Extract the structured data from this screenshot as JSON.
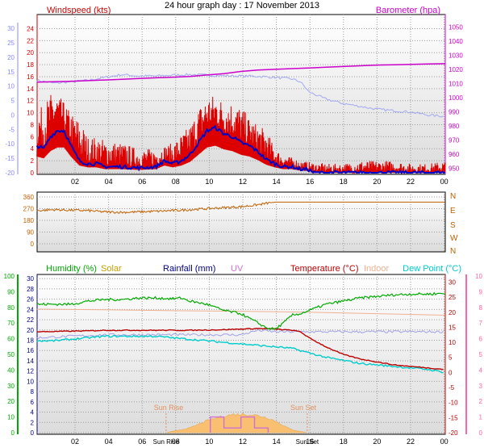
{
  "title": "24 hour graph day : 17 November 2013",
  "colors": {
    "wind": "#dd0000",
    "wind_avg": "#0000cc",
    "barometer": "#cc00cc",
    "temp_left_axis": "#8888ff",
    "indoor_temp_top": "#a0a8f0",
    "direction": "#c06000",
    "humidity": "#00aa00",
    "solar": "#c8a000",
    "rainfall": "#000088",
    "uv": "#d070d0",
    "temperature": "#bb0000",
    "indoor": "#f0b090",
    "dew_point": "#00cccc",
    "solar_fill": "#f8c070",
    "sun_marker": "#e09060",
    "panel_bg_top": "#ffffff",
    "panel_bg_bottom": "#dcdcdc"
  },
  "x_ticks": [
    "02",
    "04",
    "06",
    "08",
    "10",
    "12",
    "14",
    "16",
    "18",
    "20",
    "22",
    "00"
  ],
  "sun": {
    "rise_label": "Sun Rise",
    "set_label": "Sun Set",
    "rise_tick": "Sun Rise",
    "set_tick": "Sun Set",
    "rise_hour": 7.6,
    "set_hour": 15.9
  },
  "chart_data": [
    {
      "type": "line",
      "title": "",
      "legend": {
        "wind": "Windspeed (kts)",
        "barometer": "Barometer (hpa)"
      },
      "left_outer_ticks": [
        "-20",
        "-15",
        "-10",
        "-5",
        "0",
        "5",
        "10",
        "15",
        "20",
        "25",
        "30"
      ],
      "left_ticks": [
        "0",
        "2",
        "4",
        "6",
        "8",
        "10",
        "12",
        "14",
        "16",
        "18",
        "20",
        "22",
        "24"
      ],
      "right_ticks": [
        "950",
        "960",
        "970",
        "980",
        "990",
        "1000",
        "1010",
        "1020",
        "1030",
        "1040",
        "1050"
      ],
      "ylim_wind": [
        0,
        25
      ],
      "ylim_baro": [
        947,
        1053
      ],
      "ylim_outer": [
        -20,
        32
      ],
      "series": {
        "wind_avg_hours": [
          0,
          0.4,
          0.8,
          1.2,
          1.6,
          2,
          2.5,
          3,
          3.5,
          4,
          5,
          6,
          7,
          7.5,
          8,
          8.5,
          9,
          9.5,
          10,
          10.5,
          11,
          11.5,
          12,
          12.5,
          13,
          13.5,
          14,
          14.5,
          15,
          15.5,
          16,
          16.3,
          24
        ],
        "wind_avg_values": [
          4.5,
          4,
          6,
          7,
          7,
          4.5,
          2,
          1.5,
          1.5,
          1,
          1,
          0.8,
          1,
          2,
          1.5,
          2,
          3,
          5,
          7,
          7.5,
          6.5,
          6,
          5,
          4.5,
          3.5,
          2.2,
          1.5,
          1,
          1,
          0.6,
          0.5,
          0,
          0
        ],
        "gust_envelope_hours": [
          0,
          0.5,
          1,
          1.5,
          2,
          2.5,
          3,
          3.5,
          4,
          5,
          6,
          7,
          8,
          9,
          9.5,
          10,
          10.5,
          11,
          11.5,
          12,
          12.5,
          13,
          13.5,
          14,
          14.5,
          15,
          15.5,
          16,
          17,
          18,
          19,
          20,
          21,
          22,
          23,
          24
        ],
        "gust_envelope_values": [
          10,
          12,
          14,
          12,
          10,
          9,
          6,
          6,
          5.5,
          5,
          4,
          4,
          5,
          8,
          11,
          13,
          13,
          12,
          12,
          11,
          9,
          8,
          7,
          4,
          3,
          2.5,
          2,
          1.8,
          1.5,
          1.5,
          2,
          2,
          2,
          1.5,
          1.5,
          2
        ],
        "baro_hours": [
          0,
          1,
          2,
          3,
          4,
          5,
          6,
          7,
          8,
          9,
          10,
          11,
          12,
          13,
          14,
          15,
          16,
          17,
          18,
          19,
          20,
          21,
          22,
          23,
          24
        ],
        "baro_values": [
          1011,
          1011.2,
          1011.5,
          1012,
          1012.5,
          1013,
          1013.5,
          1014,
          1014.5,
          1015,
          1016,
          1017,
          1018.5,
          1019.5,
          1020,
          1020.5,
          1021,
          1021.5,
          1022,
          1022.5,
          1023,
          1023.2,
          1023.5,
          1023.8,
          1024
        ],
        "temp_top_hours": [
          0,
          1,
          2,
          3,
          4,
          5,
          6,
          7,
          8,
          9,
          10,
          11,
          12,
          13,
          14,
          15,
          15.5,
          16,
          17,
          18,
          19,
          20,
          21,
          22,
          23,
          24
        ],
        "temp_top_values": [
          12,
          11,
          11.5,
          12,
          13,
          14,
          13.5,
          13.5,
          13.8,
          14,
          13.8,
          13.6,
          13.5,
          13.4,
          13,
          12.5,
          11.5,
          8,
          5.5,
          4,
          3,
          2,
          1.5,
          1,
          0,
          -0.5
        ]
      }
    },
    {
      "type": "line",
      "title": "",
      "left_ticks": [
        "0",
        "90",
        "180",
        "270",
        "360"
      ],
      "right_labels": [
        "N",
        "W",
        "S",
        "E",
        "N"
      ],
      "ylim": [
        0,
        360
      ],
      "hours": [
        0,
        1,
        2,
        3,
        4,
        5,
        6,
        7,
        8,
        9,
        10,
        11,
        12,
        13,
        13.7,
        14,
        24
      ],
      "values": [
        255,
        262,
        258,
        255,
        245,
        242,
        245,
        250,
        255,
        262,
        270,
        278,
        285,
        300,
        315,
        320,
        320
      ]
    },
    {
      "type": "line",
      "title": "",
      "legend": {
        "humidity": "Humidity (%)",
        "solar": "Solar",
        "rainfall": "Rainfall (mm)",
        "uv": "UV",
        "temperature": "Temperature (°C)",
        "indoor": "Indoor",
        "dew_point": "Dew Point (°C)"
      },
      "left_ticks_humidity": [
        "0",
        "10",
        "20",
        "30",
        "40",
        "50",
        "60",
        "70",
        "80",
        "90",
        "100"
      ],
      "left_ticks_rain": [
        "0",
        "2",
        "4",
        "6",
        "8",
        "10",
        "12",
        "14",
        "16",
        "18",
        "20",
        "22",
        "24",
        "26",
        "28",
        "30"
      ],
      "right_ticks_temp": [
        "-20",
        "-15",
        "-10",
        "-5",
        "0",
        "5",
        "10",
        "15",
        "20",
        "25",
        "30"
      ],
      "right_ticks_uv": [
        "0",
        "1",
        "2",
        "3",
        "4",
        "5",
        "6",
        "7",
        "8",
        "9",
        "10"
      ],
      "ylim_humidity": [
        0,
        100
      ],
      "ylim_temp": [
        -20,
        32
      ],
      "series": {
        "humidity_hours": [
          0,
          1,
          2,
          3,
          4,
          5,
          6,
          7,
          8,
          8.5,
          9,
          10,
          11,
          12,
          12.5,
          13,
          13.5,
          14,
          14.5,
          15,
          15.5,
          16,
          17,
          18,
          19,
          20,
          21,
          22,
          23,
          24
        ],
        "humidity_values": [
          82,
          82,
          82,
          84,
          85,
          85,
          86,
          86,
          85.5,
          86,
          84,
          82,
          78,
          76,
          73,
          70,
          67,
          66,
          70,
          75,
          76,
          78,
          82,
          84,
          86,
          87,
          88,
          88.5,
          88.5,
          89
        ],
        "temperature_hours": [
          0,
          1,
          2,
          3,
          4,
          5,
          6,
          7,
          8,
          9,
          10,
          11,
          12,
          13,
          14,
          15,
          15.5,
          16,
          17,
          18,
          19,
          20,
          21,
          22,
          23,
          24
        ],
        "temperature_values": [
          13.5,
          13.6,
          13.7,
          13.8,
          14,
          14,
          14,
          14,
          14,
          14,
          14.1,
          14.2,
          14.4,
          14.6,
          14.4,
          14,
          13.5,
          11.5,
          8.5,
          6,
          4.5,
          3.5,
          2.5,
          2,
          1.5,
          1
        ],
        "dew_point_hours": [
          0,
          1,
          2,
          3,
          4,
          5,
          6,
          7,
          8,
          9,
          10,
          11,
          12,
          13,
          14,
          15,
          16,
          17,
          18,
          19,
          20,
          21,
          22,
          23,
          24
        ],
        "dew_point_values": [
          10.5,
          10.5,
          11,
          11.5,
          12,
          12,
          12,
          12,
          11.5,
          11,
          10.5,
          10,
          9.5,
          9,
          8.5,
          8,
          6.5,
          5,
          4,
          3,
          2.5,
          2,
          1.5,
          1,
          0
        ],
        "indoor_hours": [
          0,
          4,
          8,
          12,
          16,
          20,
          24
        ],
        "indoor_values": [
          21,
          20.8,
          20.5,
          20.3,
          20,
          19.5,
          19
        ],
        "apparent_hours": [
          0,
          2,
          4,
          6,
          8,
          10,
          12,
          13,
          14,
          15,
          24
        ],
        "apparent_values": [
          11.5,
          12,
          12.5,
          12.5,
          12.5,
          12.5,
          12.5,
          14,
          13.5,
          13.5,
          13.5
        ],
        "solar_hours": [
          7.6,
          9,
          10,
          11,
          11.5,
          12,
          12.5,
          13,
          13.5,
          14,
          14.5,
          15,
          15.9
        ],
        "solar_values": [
          0,
          1,
          2.5,
          3.5,
          3.8,
          3.9,
          3.8,
          3.6,
          3.2,
          2.5,
          1.5,
          0.6,
          0
        ],
        "uv_hours": [
          10.2,
          10.2,
          11,
          11,
          12,
          12,
          12.8,
          12.8,
          13.6,
          13.6
        ],
        "uv_values": [
          0,
          1,
          1,
          0.3,
          0.3,
          1,
          1,
          0.3,
          0.3,
          0
        ]
      }
    }
  ]
}
